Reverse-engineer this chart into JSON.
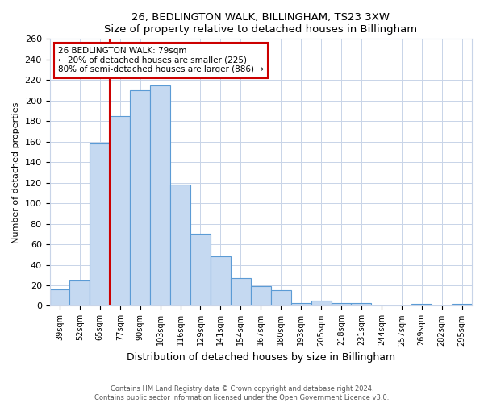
{
  "title": "26, BEDLINGTON WALK, BILLINGHAM, TS23 3XW",
  "subtitle": "Size of property relative to detached houses in Billingham",
  "xlabel": "Distribution of detached houses by size in Billingham",
  "ylabel": "Number of detached properties",
  "bar_labels": [
    "39sqm",
    "52sqm",
    "65sqm",
    "77sqm",
    "90sqm",
    "103sqm",
    "116sqm",
    "129sqm",
    "141sqm",
    "154sqm",
    "167sqm",
    "180sqm",
    "193sqm",
    "205sqm",
    "218sqm",
    "231sqm",
    "244sqm",
    "257sqm",
    "269sqm",
    "282sqm",
    "295sqm"
  ],
  "bar_values": [
    16,
    25,
    158,
    185,
    210,
    215,
    118,
    70,
    48,
    27,
    19,
    15,
    3,
    5,
    3,
    3,
    0,
    0,
    2,
    0,
    2
  ],
  "bar_color": "#c5d9f1",
  "bar_edge_color": "#5b9bd5",
  "vline_x_index": 3,
  "vline_color": "#cc0000",
  "annotation_text": "26 BEDLINGTON WALK: 79sqm\n← 20% of detached houses are smaller (225)\n80% of semi-detached houses are larger (886) →",
  "annotation_box_color": "#ffffff",
  "annotation_box_edge": "#cc0000",
  "ylim": [
    0,
    260
  ],
  "yticks": [
    0,
    20,
    40,
    60,
    80,
    100,
    120,
    140,
    160,
    180,
    200,
    220,
    240,
    260
  ],
  "footer_line1": "Contains HM Land Registry data © Crown copyright and database right 2024.",
  "footer_line2": "Contains public sector information licensed under the Open Government Licence v3.0.",
  "bg_color": "#ffffff",
  "grid_color": "#c8d4e8"
}
